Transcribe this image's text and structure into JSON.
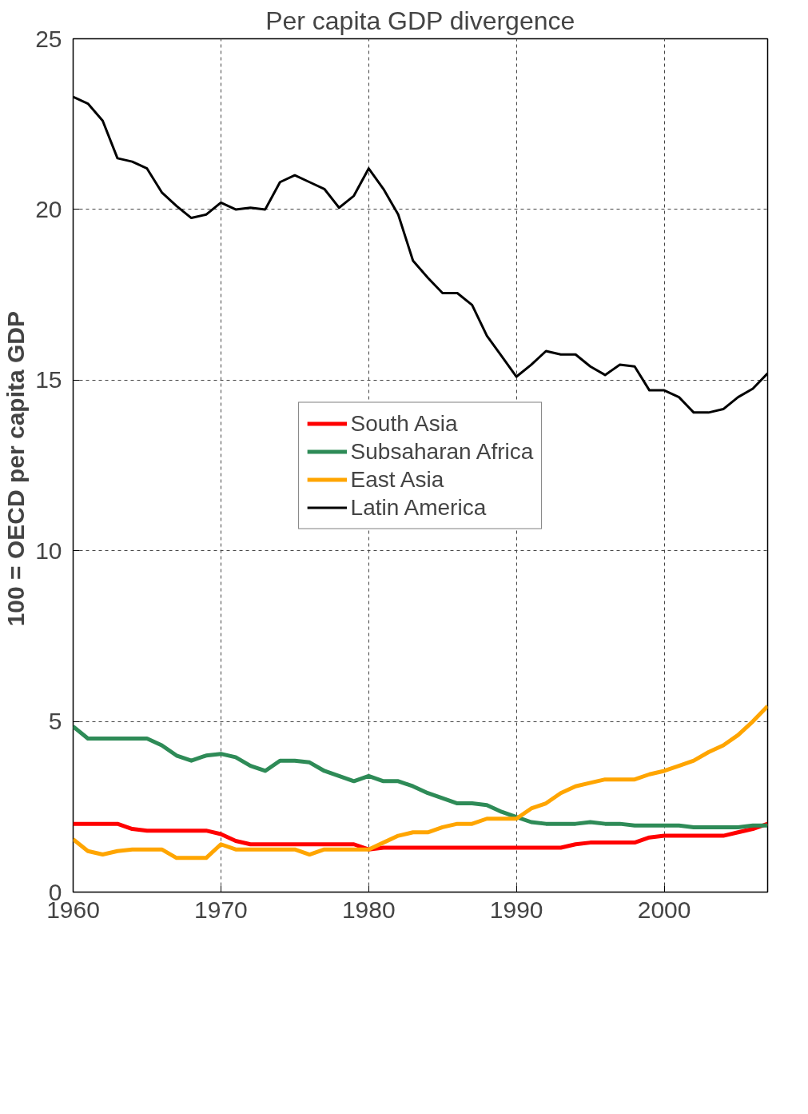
{
  "chart_data": {
    "type": "line",
    "title": "Per capita GDP divergence",
    "ylabel": "100 = OECD  per capita GDP",
    "x": [
      1960,
      1961,
      1962,
      1963,
      1964,
      1965,
      1966,
      1967,
      1968,
      1969,
      1970,
      1971,
      1972,
      1973,
      1974,
      1975,
      1976,
      1977,
      1978,
      1979,
      1980,
      1981,
      1982,
      1983,
      1984,
      1985,
      1986,
      1987,
      1988,
      1989,
      1990,
      1991,
      1992,
      1993,
      1994,
      1995,
      1996,
      1997,
      1998,
      1999,
      2000,
      2001,
      2002,
      2003,
      2004,
      2005,
      2006,
      2007
    ],
    "series": [
      {
        "name": "South Asia",
        "color": "#ff0000",
        "values": [
          2.0,
          2.0,
          2.0,
          2.0,
          1.85,
          1.8,
          1.8,
          1.8,
          1.8,
          1.8,
          1.7,
          1.5,
          1.4,
          1.4,
          1.4,
          1.4,
          1.4,
          1.4,
          1.4,
          1.4,
          1.25,
          1.3,
          1.3,
          1.3,
          1.3,
          1.3,
          1.3,
          1.3,
          1.3,
          1.3,
          1.3,
          1.3,
          1.3,
          1.3,
          1.4,
          1.45,
          1.45,
          1.45,
          1.45,
          1.6,
          1.65,
          1.65,
          1.65,
          1.65,
          1.65,
          1.75,
          1.85,
          2.0
        ]
      },
      {
        "name": "Subsaharan Africa",
        "color": "#2e8b57",
        "values": [
          4.85,
          4.5,
          4.5,
          4.5,
          4.5,
          4.5,
          4.3,
          4.0,
          3.85,
          4.0,
          4.05,
          3.95,
          3.7,
          3.55,
          3.85,
          3.85,
          3.8,
          3.55,
          3.4,
          3.25,
          3.4,
          3.25,
          3.25,
          3.1,
          2.9,
          2.75,
          2.6,
          2.6,
          2.55,
          2.35,
          2.2,
          2.05,
          2.0,
          2.0,
          2.0,
          2.05,
          2.0,
          2.0,
          1.95,
          1.95,
          1.95,
          1.95,
          1.9,
          1.9,
          1.9,
          1.9,
          1.95,
          1.95
        ]
      },
      {
        "name": "East Asia",
        "color": "#ffa500",
        "values": [
          1.55,
          1.2,
          1.1,
          1.2,
          1.25,
          1.25,
          1.25,
          1.0,
          1.0,
          1.0,
          1.4,
          1.25,
          1.25,
          1.25,
          1.25,
          1.25,
          1.1,
          1.25,
          1.25,
          1.25,
          1.25,
          1.45,
          1.65,
          1.75,
          1.75,
          1.9,
          2.0,
          2.0,
          2.15,
          2.15,
          2.15,
          2.45,
          2.6,
          2.9,
          3.1,
          3.2,
          3.3,
          3.3,
          3.3,
          3.45,
          3.55,
          3.7,
          3.85,
          4.1,
          4.3,
          4.6,
          5.0,
          5.45
        ]
      },
      {
        "name": "Latin America",
        "color": "#000000",
        "values": [
          23.3,
          23.1,
          22.6,
          21.5,
          21.4,
          21.2,
          20.5,
          20.1,
          19.75,
          19.85,
          20.2,
          20.0,
          20.05,
          20.0,
          20.8,
          21.0,
          20.8,
          20.6,
          20.05,
          20.4,
          21.2,
          20.6,
          19.85,
          18.5,
          18.0,
          17.55,
          17.55,
          17.2,
          16.3,
          15.7,
          15.1,
          15.45,
          15.85,
          15.75,
          15.75,
          15.4,
          15.15,
          15.45,
          15.4,
          14.7,
          14.7,
          14.5,
          14.05,
          14.05,
          14.15,
          14.5,
          14.75,
          15.2
        ]
      }
    ],
    "xlim": [
      1960,
      2007
    ],
    "xticks": [
      1960,
      1970,
      1980,
      1990,
      2000
    ],
    "ylim": [
      0,
      25
    ],
    "yticks": [
      0,
      5,
      10,
      15,
      20,
      25
    ],
    "grid": true,
    "legend": "center",
    "line_style": "solid",
    "marker": "none"
  }
}
